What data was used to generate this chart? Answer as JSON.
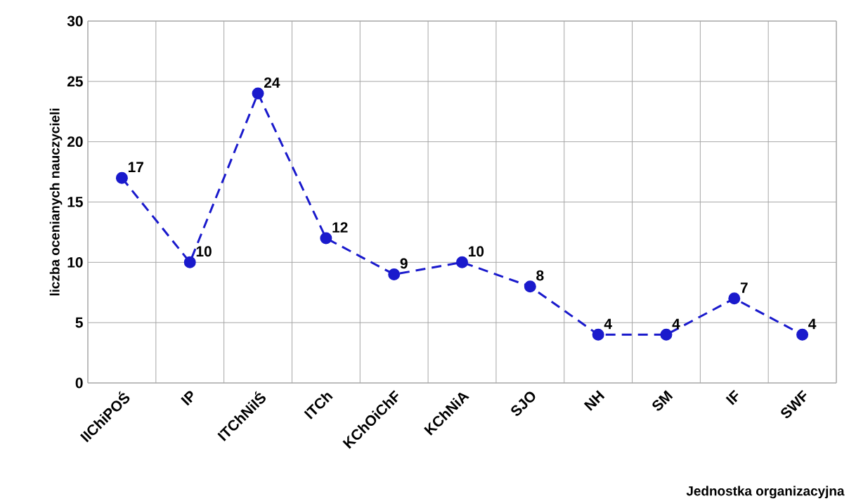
{
  "chart_data": {
    "type": "line",
    "xlabel": "Jednostka organizacyjna",
    "ylabel": "liczba ocenianych nauczycieli",
    "categories": [
      "IIChiPOŚ",
      "IP",
      "ITChNiIŚ",
      "ITCh",
      "KChOiChF",
      "KChNiA",
      "SJO",
      "NH",
      "SM",
      "IF",
      "SWF"
    ],
    "series": [
      {
        "color": "#1a1acc",
        "values": [
          17,
          10,
          24,
          12,
          9,
          10,
          8,
          4,
          4,
          7,
          4
        ]
      }
    ],
    "ylim": [
      0,
      30
    ],
    "yticks": [
      0,
      5,
      10,
      15,
      20,
      25,
      30
    ],
    "grid": true,
    "data_labels": true,
    "marker": "circle",
    "line_style": "dashed"
  }
}
